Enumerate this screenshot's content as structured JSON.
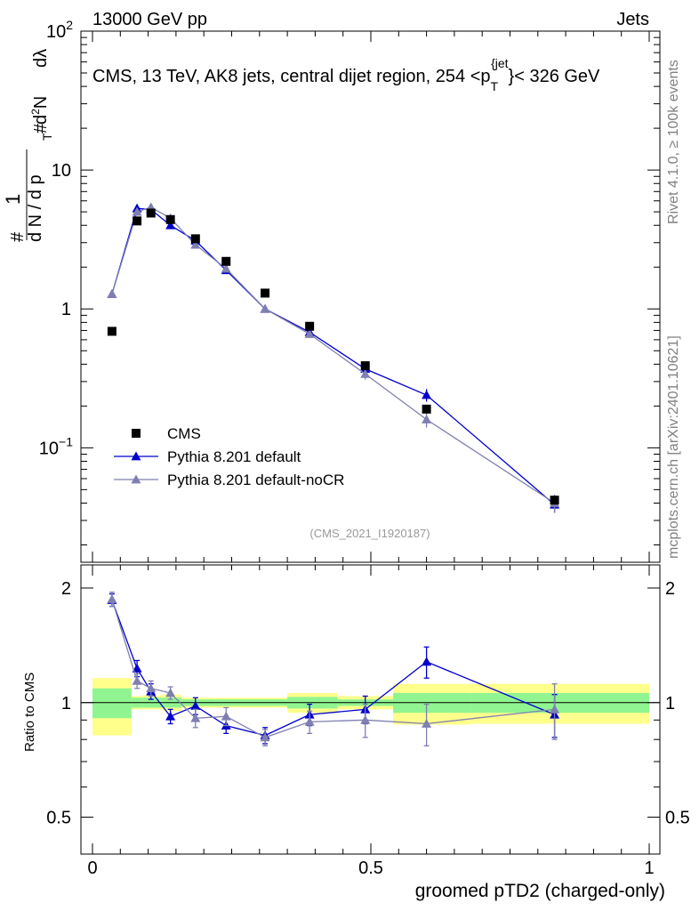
{
  "header": {
    "energy": "13000 GeV pp",
    "process": "Jets"
  },
  "side_labels": {
    "rivet": "Rivet 4.1.0, ≥ 100k events",
    "source": "mcplots.cern.ch [arXiv:2401.10621]"
  },
  "chart_data": {
    "type": "scatter",
    "title": "CMS, 13 TeV, AK8 jets, central dijet region, 254 <p_T^{jet}< 326 GeV",
    "title_parts": {
      "main": "CMS, 13 TeV, AK8 jets, central dijet region, 254 <p",
      "sub": "T",
      "sup": "{jet",
      "tail": "}< 326 GeV"
    },
    "analysis_id": "(CMS_2021_I1920187)",
    "xlabel": "groomed pTD2 (charged-only)",
    "ylabel_top": "(1/dN/dp_T) d²N/dp_T dλ",
    "ylabel_parts": {
      "one": "1",
      "hash": "#",
      "denominator": "d N / d p",
      "numerator": "d",
      "numerator_sup": "2",
      "numerator_n": "N",
      "lambda": "dλ",
      "subscript": "T"
    },
    "ylabel_ratio": "Ratio to CMS",
    "xlim": [
      0,
      1
    ],
    "ylim_top": [
      0.015,
      100
    ],
    "ylim_ratio": [
      0.4,
      2.3
    ],
    "x_ticks": [
      0,
      0.5,
      1
    ],
    "x_tick_labels": [
      "0",
      "0.5",
      "1"
    ],
    "y_ticks_top": [
      0.1,
      1,
      10,
      100
    ],
    "y_tick_labels_top": [
      {
        "base": "10",
        "exp": "−1"
      },
      {
        "base": "1",
        "exp": ""
      },
      {
        "base": "10",
        "exp": ""
      },
      {
        "base": "10",
        "exp": "2"
      }
    ],
    "y_ticks_ratio": [
      0.5,
      1,
      2
    ],
    "y_tick_labels_ratio": [
      "0.5",
      "1",
      "2"
    ],
    "legend_position": "bottom-left",
    "series": [
      {
        "name": "CMS",
        "marker": "square",
        "color": "#000000",
        "x": [
          0.035,
          0.08,
          0.105,
          0.14,
          0.185,
          0.24,
          0.31,
          0.39,
          0.49,
          0.6,
          0.83
        ],
        "y": [
          0.69,
          4.3,
          4.9,
          4.4,
          3.2,
          2.2,
          1.3,
          0.75,
          0.39,
          0.19,
          0.042
        ],
        "err": [
          0.02,
          0.1,
          0.1,
          0.1,
          0.08,
          0.06,
          0.04,
          0.03,
          0.015,
          0.01,
          0.003
        ],
        "band_x": [
          0,
          0.07,
          0.07,
          0.09,
          0.09,
          0.125,
          0.125,
          0.16,
          0.16,
          0.22,
          0.22,
          0.27,
          0.27,
          0.35,
          0.35,
          0.44,
          0.44,
          0.54,
          0.54,
          0.68,
          0.68,
          1.0
        ],
        "band_stat": [
          {
            "x0": 0.0,
            "x1": 0.07,
            "lo": 0.91,
            "hi": 1.09
          },
          {
            "x0": 0.07,
            "x1": 0.09,
            "lo": 0.97,
            "hi": 1.03
          },
          {
            "x0": 0.09,
            "x1": 0.125,
            "lo": 0.97,
            "hi": 1.03
          },
          {
            "x0": 0.125,
            "x1": 0.16,
            "lo": 0.97,
            "hi": 1.03
          },
          {
            "x0": 0.16,
            "x1": 0.22,
            "lo": 0.98,
            "hi": 1.02
          },
          {
            "x0": 0.22,
            "x1": 0.27,
            "lo": 0.98,
            "hi": 1.02
          },
          {
            "x0": 0.27,
            "x1": 0.35,
            "lo": 0.98,
            "hi": 1.02
          },
          {
            "x0": 0.35,
            "x1": 0.44,
            "lo": 0.965,
            "hi": 1.035
          },
          {
            "x0": 0.44,
            "x1": 0.54,
            "lo": 0.98,
            "hi": 1.02
          },
          {
            "x0": 0.54,
            "x1": 0.68,
            "lo": 0.94,
            "hi": 1.06
          },
          {
            "x0": 0.68,
            "x1": 1.0,
            "lo": 0.94,
            "hi": 1.06
          }
        ],
        "band_total": [
          {
            "x0": 0.0,
            "x1": 0.07,
            "lo": 0.82,
            "hi": 1.16
          },
          {
            "x0": 0.07,
            "x1": 0.09,
            "lo": 0.96,
            "hi": 1.04
          },
          {
            "x0": 0.09,
            "x1": 0.125,
            "lo": 0.96,
            "hi": 1.045
          },
          {
            "x0": 0.125,
            "x1": 0.16,
            "lo": 0.95,
            "hi": 1.05
          },
          {
            "x0": 0.16,
            "x1": 0.22,
            "lo": 0.97,
            "hi": 1.03
          },
          {
            "x0": 0.22,
            "x1": 0.27,
            "lo": 0.97,
            "hi": 1.03
          },
          {
            "x0": 0.27,
            "x1": 0.35,
            "lo": 0.97,
            "hi": 1.03
          },
          {
            "x0": 0.35,
            "x1": 0.44,
            "lo": 0.94,
            "hi": 1.06
          },
          {
            "x0": 0.44,
            "x1": 0.54,
            "lo": 0.96,
            "hi": 1.04
          },
          {
            "x0": 0.54,
            "x1": 0.68,
            "lo": 0.875,
            "hi": 1.12
          },
          {
            "x0": 0.68,
            "x1": 1.0,
            "lo": 0.88,
            "hi": 1.12
          }
        ]
      },
      {
        "name": "Pythia 8.201 default",
        "marker": "triangle",
        "color": "#0000cc",
        "x": [
          0.035,
          0.08,
          0.105,
          0.14,
          0.185,
          0.24,
          0.31,
          0.39,
          0.49,
          0.6,
          0.83
        ],
        "y": [
          1.28,
          5.3,
          5.2,
          4.0,
          3.1,
          1.9,
          1.0,
          0.68,
          0.37,
          0.24,
          0.039
        ],
        "err": [
          0.05,
          0.3,
          0.2,
          0.2,
          0.15,
          0.1,
          0.05,
          0.04,
          0.02,
          0.025,
          0.005
        ],
        "ratio": [
          1.86,
          1.23,
          1.07,
          0.92,
          0.98,
          0.87,
          0.82,
          0.93,
          0.96,
          1.28,
          0.93
        ],
        "ratio_err": [
          0.07,
          0.06,
          0.05,
          0.04,
          0.05,
          0.04,
          0.04,
          0.06,
          0.08,
          0.12,
          0.12
        ]
      },
      {
        "name": "Pythia 8.201 default-noCR",
        "marker": "triangle",
        "color": "#7f7fb2",
        "x": [
          0.035,
          0.08,
          0.105,
          0.14,
          0.185,
          0.24,
          0.31,
          0.39,
          0.49,
          0.6,
          0.83
        ],
        "y": [
          1.28,
          5.0,
          5.4,
          4.5,
          2.9,
          1.95,
          1.0,
          0.66,
          0.34,
          0.16,
          0.04
        ],
        "err": [
          0.05,
          0.3,
          0.2,
          0.2,
          0.15,
          0.1,
          0.05,
          0.04,
          0.03,
          0.02,
          0.006
        ],
        "ratio": [
          1.87,
          1.14,
          1.09,
          1.06,
          0.91,
          0.92,
          0.81,
          0.89,
          0.9,
          0.88,
          0.96
        ],
        "ratio_err": [
          0.08,
          0.05,
          0.05,
          0.04,
          0.05,
          0.05,
          0.04,
          0.06,
          0.09,
          0.11,
          0.16
        ]
      }
    ]
  }
}
